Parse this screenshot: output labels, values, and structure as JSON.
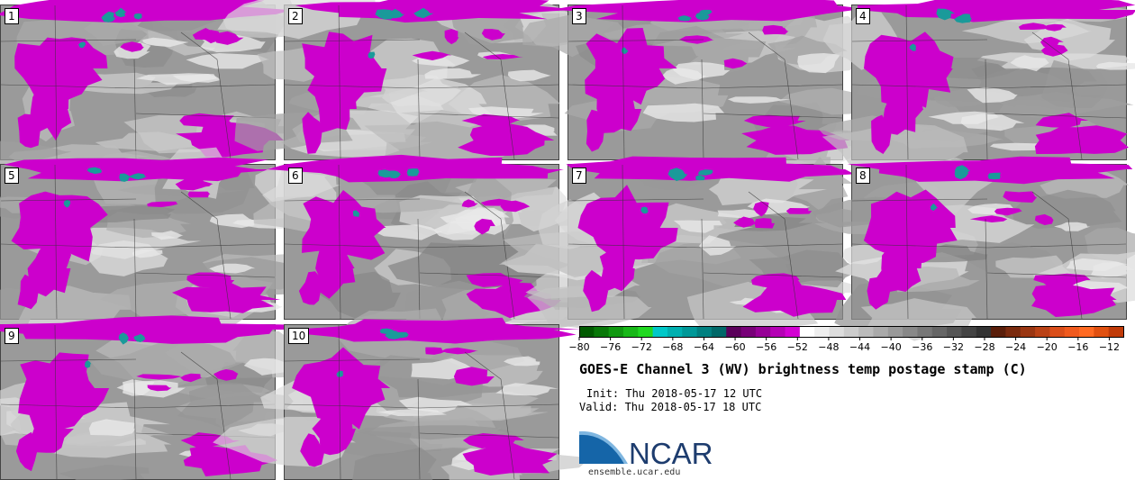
{
  "panels": [
    {
      "label": "1"
    },
    {
      "label": "2"
    },
    {
      "label": "3"
    },
    {
      "label": "4"
    },
    {
      "label": "5"
    },
    {
      "label": "6"
    },
    {
      "label": "7"
    },
    {
      "label": "8"
    },
    {
      "label": "9"
    },
    {
      "label": "10"
    }
  ],
  "colorbar": {
    "tick_labels": [
      "−80",
      "−76",
      "−72",
      "−68",
      "−64",
      "−60",
      "−56",
      "−52",
      "−48",
      "−44",
      "−40",
      "−36",
      "−32",
      "−28",
      "−24",
      "−20",
      "−16",
      "−12"
    ],
    "colors": [
      "#005a00",
      "#087808",
      "#109810",
      "#18b818",
      "#20d820",
      "#00c8c8",
      "#00b0b0",
      "#009898",
      "#008080",
      "#006868",
      "#5a005a",
      "#780078",
      "#960096",
      "#b400b4",
      "#d200d2",
      "#ffffff",
      "#eeeeee",
      "#dddddd",
      "#cccccc",
      "#bbbbbb",
      "#aaaaaa",
      "#999999",
      "#888888",
      "#777777",
      "#666666",
      "#555555",
      "#444444",
      "#333333",
      "#5a1e0a",
      "#7a2a0e",
      "#9a3612",
      "#ba4216",
      "#da4e1a",
      "#f05a1e",
      "#ff6a22",
      "#e05010",
      "#c03a08"
    ]
  },
  "title": "GOES-E Channel 3 (WV) brightness temp postage stamp (C)",
  "init": "Init: Thu 2018-05-17 12 UTC",
  "valid": "Valid: Thu 2018-05-17 18 UTC",
  "logo": {
    "text": "NCAR",
    "url": "ensemble.ucar.edu",
    "accent": "#1565a8"
  },
  "colors": {
    "magenta": "#cc00cc",
    "teal": "#1a9a9a",
    "gray_bg": "#9a9a9a"
  }
}
